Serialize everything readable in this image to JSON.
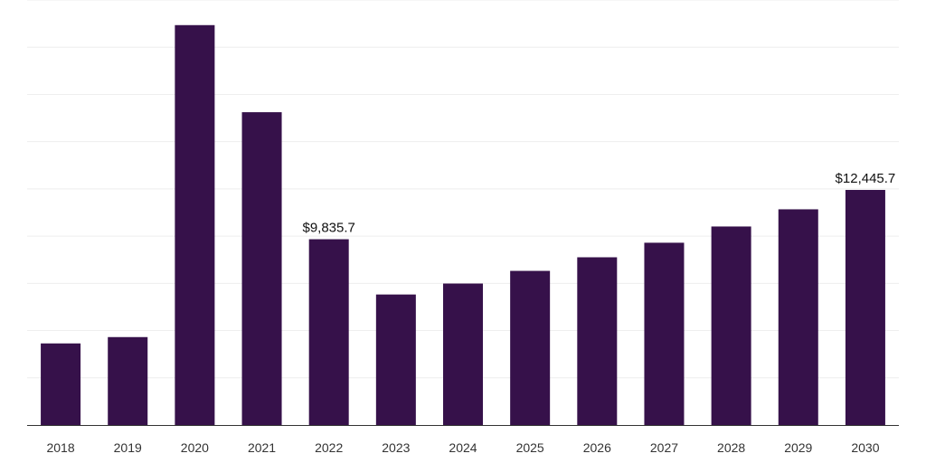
{
  "chart_data": {
    "type": "bar",
    "title": "",
    "xlabel": "",
    "ylabel": "",
    "categories": [
      "2018",
      "2019",
      "2020",
      "2021",
      "2022",
      "2023",
      "2024",
      "2025",
      "2026",
      "2027",
      "2028",
      "2029",
      "2030"
    ],
    "values": [
      4320,
      4655,
      21170,
      16560,
      9835.7,
      6910,
      7490,
      8160,
      8880,
      9650,
      10510,
      11420,
      12445.7
    ],
    "data_labels": {
      "4": "$9,835.7",
      "12": "$12,445.7"
    },
    "ylim": [
      0,
      22500
    ],
    "ytick_step": 2500,
    "grid": true,
    "bar_color": "#36114a",
    "grid_color": "#eeeeee",
    "axis_color": "#333333"
  }
}
